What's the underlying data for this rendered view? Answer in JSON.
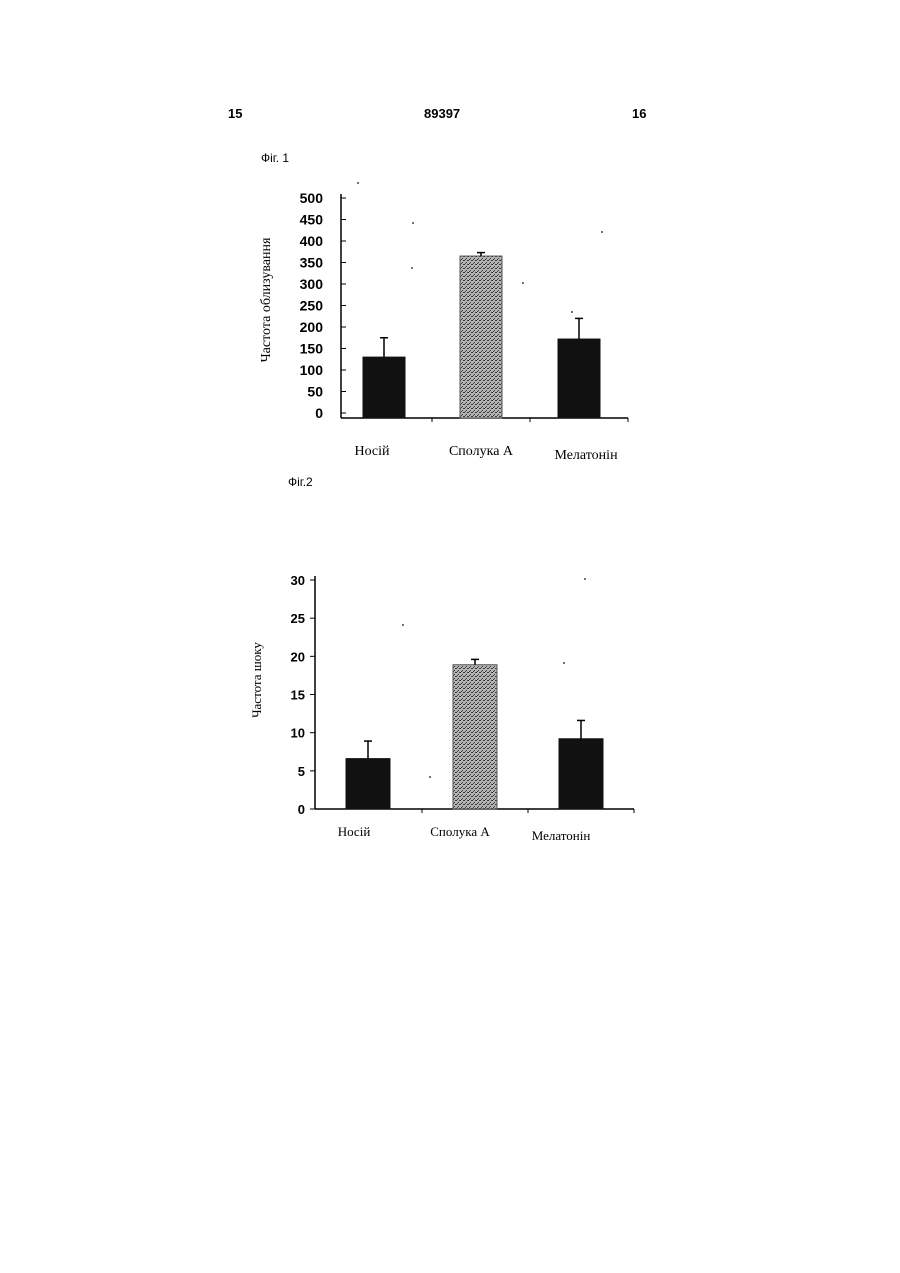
{
  "header": {
    "left": "15",
    "center": "89397",
    "right": "16"
  },
  "figures": [
    {
      "label": "Фіг. 1"
    },
    {
      "label": "Фіг.2"
    }
  ],
  "colors": {
    "solid_bar": "#111111",
    "dotted_bar": "#9a9a9a",
    "axis": "#000000"
  },
  "chart_data": [
    {
      "type": "bar",
      "categories": [
        "Носій",
        "Сполука А",
        "Мелатонін"
      ],
      "values": [
        130,
        365,
        172
      ],
      "error": [
        45,
        8,
        48
      ],
      "bar_styles": [
        "solid",
        "dotted",
        "solid"
      ],
      "title": "",
      "xlabel": "",
      "ylabel": "Частота облизування",
      "ylim": [
        0,
        500
      ],
      "yticks": [
        0,
        50,
        100,
        150,
        200,
        250,
        300,
        350,
        400,
        450,
        500
      ],
      "grid": false
    },
    {
      "type": "bar",
      "categories": [
        "Носій",
        "Сполука А",
        "Мелатонін"
      ],
      "values": [
        6.6,
        18.9,
        9.2
      ],
      "error": [
        2.3,
        0.7,
        2.4
      ],
      "bar_styles": [
        "solid",
        "dotted",
        "solid"
      ],
      "title": "",
      "xlabel": "",
      "ylabel": "Частота шоку",
      "ylim": [
        0,
        30
      ],
      "yticks": [
        0,
        5,
        10,
        15,
        20,
        25,
        30
      ],
      "grid": false
    }
  ]
}
